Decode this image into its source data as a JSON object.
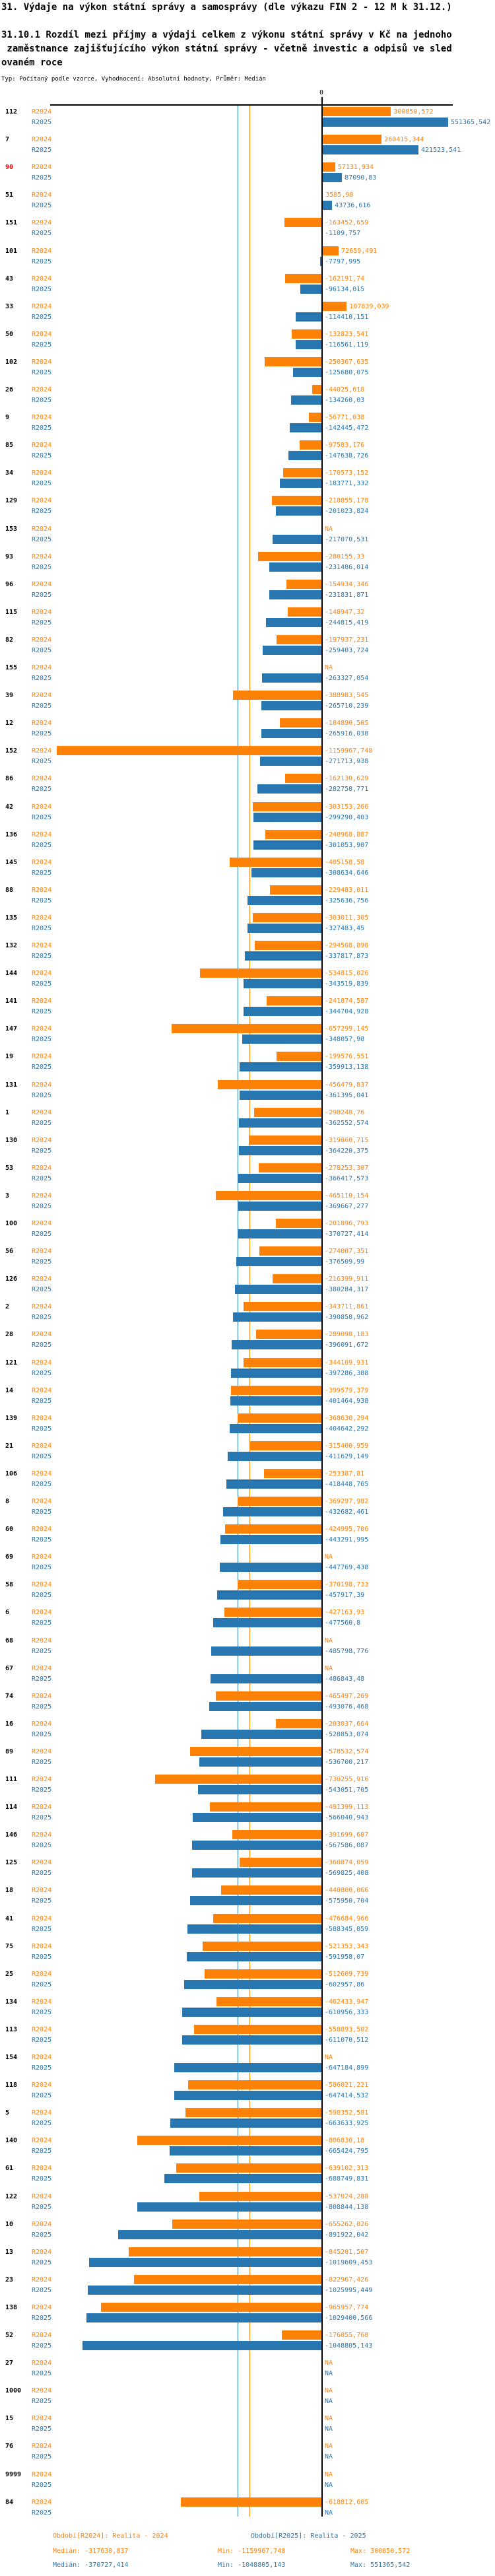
{
  "header": {
    "title": "31. Výdaje na výkon státní správy a samosprávy (dle výkazu FIN 2 - 12 M k 31.12.)",
    "subtitle_lines": [
      "31.10.1 Rozdíl mezi příjmy a výdaji celkem z výkonu státní správy v Kč na jednoho",
      " zaměstnance zajišťujícího výkon státní správy - včetně investic a odpisů ve sled",
      "ovaném roce"
    ],
    "type_note": "Typ: Počítaný podle vzorce, Vyhodnocení: Absolutní hodnoty, Průměr: Medián"
  },
  "chart_data": {
    "type": "bar",
    "orientation": "horizontal",
    "series_names": [
      "R2024",
      "R2025"
    ],
    "colors": {
      "r2024": "#ff8208",
      "r2025": "#2877b0",
      "highlight_id": "#ff0000",
      "axis": "#000000"
    },
    "axis": {
      "zero_label": "0"
    },
    "na_label": "NA",
    "rows": [
      {
        "id": "112",
        "r2024": "300850,572",
        "r2025": "551365,542"
      },
      {
        "id": "7",
        "r2024": "260415,344",
        "r2025": "421523,541"
      },
      {
        "id": "90",
        "highlight": true,
        "r2024": "57131,934",
        "r2025": "87090,83"
      },
      {
        "id": "51",
        "r2024": "3585,98",
        "r2025": "43736,616"
      },
      {
        "id": "151",
        "r2024": "-163452,659",
        "r2025": "-1109,757"
      },
      {
        "id": "101",
        "r2024": "72659,491",
        "r2025": "-7797,995"
      },
      {
        "id": "43",
        "r2024": "-162191,74",
        "r2025": "-96134,015"
      },
      {
        "id": "33",
        "r2024": "107839,039",
        "r2025": "-114410,151"
      },
      {
        "id": "50",
        "r2024": "-132823,541",
        "r2025": "-116561,119"
      },
      {
        "id": "102",
        "r2024": "-250367,635",
        "r2025": "-125680,075"
      },
      {
        "id": "26",
        "r2024": "-44025,618",
        "r2025": "-134260,03"
      },
      {
        "id": "9",
        "r2024": "-56771,038",
        "r2025": "-142445,472"
      },
      {
        "id": "85",
        "r2024": "-97583,176",
        "r2025": "-147638,726"
      },
      {
        "id": "34",
        "r2024": "-170573,152",
        "r2025": "-183771,332"
      },
      {
        "id": "129",
        "r2024": "-218855,178",
        "r2025": "-201023,824"
      },
      {
        "id": "153",
        "r2024": "NA",
        "r2025": "-217070,531"
      },
      {
        "id": "93",
        "r2024": "-280155,33",
        "r2025": "-231486,014"
      },
      {
        "id": "96",
        "r2024": "-154934,346",
        "r2025": "-231831,871"
      },
      {
        "id": "115",
        "r2024": "-148947,32",
        "r2025": "-244815,419"
      },
      {
        "id": "82",
        "r2024": "-197937,231",
        "r2025": "-259403,724"
      },
      {
        "id": "155",
        "r2024": "NA",
        "r2025": "-263327,054"
      },
      {
        "id": "39",
        "r2024": "-388983,545",
        "r2025": "-265710,239"
      },
      {
        "id": "12",
        "r2024": "-184890,505",
        "r2025": "-265916,038"
      },
      {
        "id": "152",
        "r2024": "-1159967,748",
        "r2025": "-271713,938"
      },
      {
        "id": "86",
        "r2024": "-162130,629",
        "r2025": "-282758,771"
      },
      {
        "id": "42",
        "r2024": "-303153,266",
        "r2025": "-299290,403"
      },
      {
        "id": "136",
        "r2024": "-248968,887",
        "r2025": "-301053,907"
      },
      {
        "id": "145",
        "r2024": "-405158,58",
        "r2025": "-308634,646"
      },
      {
        "id": "88",
        "r2024": "-229483,011",
        "r2025": "-325636,756"
      },
      {
        "id": "135",
        "r2024": "-303011,305",
        "r2025": "-327483,45"
      },
      {
        "id": "132",
        "r2024": "-294508,898",
        "r2025": "-337817,873"
      },
      {
        "id": "144",
        "r2024": "-534815,026",
        "r2025": "-343519,839"
      },
      {
        "id": "141",
        "r2024": "-241874,587",
        "r2025": "-344704,928"
      },
      {
        "id": "147",
        "r2024": "-657299,145",
        "r2025": "-348057,98"
      },
      {
        "id": "19",
        "r2024": "-199576,551",
        "r2025": "-359913,138"
      },
      {
        "id": "131",
        "r2024": "-456479,837",
        "r2025": "-361395,041"
      },
      {
        "id": "1",
        "r2024": "-298248,76",
        "r2025": "-362552,574"
      },
      {
        "id": "130",
        "r2024": "-319860,715",
        "r2025": "-364220,375"
      },
      {
        "id": "53",
        "r2024": "-278253,307",
        "r2025": "-366417,573"
      },
      {
        "id": "3",
        "r2024": "-465110,154",
        "r2025": "-369667,277"
      },
      {
        "id": "100",
        "r2024": "-201896,793",
        "r2025": "-370727,414"
      },
      {
        "id": "56",
        "r2024": "-274007,351",
        "r2025": "-376509,99"
      },
      {
        "id": "126",
        "r2024": "-216399,911",
        "r2025": "-380284,317"
      },
      {
        "id": "2",
        "r2024": "-343711,861",
        "r2025": "-390858,962"
      },
      {
        "id": "28",
        "r2024": "-289098,183",
        "r2025": "-396091,672"
      },
      {
        "id": "121",
        "r2024": "-344109,931",
        "r2025": "-397286,388"
      },
      {
        "id": "14",
        "r2024": "-399579,379",
        "r2025": "-401464,938"
      },
      {
        "id": "139",
        "r2024": "-368630,294",
        "r2025": "-404642,292"
      },
      {
        "id": "21",
        "r2024": "-315400,959",
        "r2025": "-411629,149"
      },
      {
        "id": "106",
        "r2024": "-253387,81",
        "r2025": "-418448,765"
      },
      {
        "id": "8",
        "r2024": "-369297,982",
        "r2025": "-432682,461"
      },
      {
        "id": "60",
        "r2024": "-424995,706",
        "r2025": "-443291,995"
      },
      {
        "id": "69",
        "r2024": "NA",
        "r2025": "-447769,438"
      },
      {
        "id": "58",
        "r2024": "-370198,733",
        "r2025": "-457917,39"
      },
      {
        "id": "6",
        "r2024": "-427163,93",
        "r2025": "-477560,8"
      },
      {
        "id": "68",
        "r2024": "NA",
        "r2025": "-485798,776"
      },
      {
        "id": "67",
        "r2024": "NA",
        "r2025": "-486843,48"
      },
      {
        "id": "74",
        "r2024": "-465497,269",
        "r2025": "-493076,468"
      },
      {
        "id": "16",
        "r2024": "-203037,664",
        "r2025": "-528853,074"
      },
      {
        "id": "89",
        "r2024": "-578532,574",
        "r2025": "-536700,217"
      },
      {
        "id": "111",
        "r2024": "-730255,916",
        "r2025": "-543051,705"
      },
      {
        "id": "114",
        "r2024": "-491399,113",
        "r2025": "-566040,943"
      },
      {
        "id": "146",
        "r2024": "-391699,687",
        "r2025": "-567586,087"
      },
      {
        "id": "125",
        "r2024": "-360874,059",
        "r2025": "-569825,408"
      },
      {
        "id": "18",
        "r2024": "-440800,066",
        "r2025": "-575950,704"
      },
      {
        "id": "41",
        "r2024": "-476684,966",
        "r2025": "-588345,059"
      },
      {
        "id": "75",
        "r2024": "-521353,343",
        "r2025": "-591958,07"
      },
      {
        "id": "25",
        "r2024": "-512609,739",
        "r2025": "-602957,86"
      },
      {
        "id": "134",
        "r2024": "-462433,947",
        "r2025": "-610956,333"
      },
      {
        "id": "113",
        "r2024": "-558893,502",
        "r2025": "-611070,512"
      },
      {
        "id": "154",
        "r2024": "NA",
        "r2025": "-647184,899"
      },
      {
        "id": "118",
        "r2024": "-586021,221",
        "r2025": "-647414,532"
      },
      {
        "id": "5",
        "r2024": "-598352,581",
        "r2025": "-663633,925"
      },
      {
        "id": "140",
        "r2024": "-806830,18",
        "r2025": "-665424,795"
      },
      {
        "id": "61",
        "r2024": "-639102,313",
        "r2025": "-688749,831"
      },
      {
        "id": "122",
        "r2024": "-537024,288",
        "r2025": "-808844,138"
      },
      {
        "id": "10",
        "r2024": "-655262,026",
        "r2025": "-891922,042"
      },
      {
        "id": "13",
        "r2024": "-845201,507",
        "r2025": "-1019609,453"
      },
      {
        "id": "23",
        "r2024": "-822967,426",
        "r2025": "-1025995,449"
      },
      {
        "id": "138",
        "r2024": "-965957,774",
        "r2025": "-1029400,566"
      },
      {
        "id": "52",
        "r2024": "-176055,768",
        "r2025": "-1048805,143"
      },
      {
        "id": "27",
        "r2024": "NA",
        "r2025": "NA"
      },
      {
        "id": "1000",
        "r2024": "NA",
        "r2025": "NA"
      },
      {
        "id": "15",
        "r2024": "NA",
        "r2025": "NA"
      },
      {
        "id": "76",
        "r2024": "NA",
        "r2025": "NA"
      },
      {
        "id": "9999",
        "r2024": "NA",
        "r2025": "NA"
      },
      {
        "id": "84",
        "r2024": "-618812,605",
        "r2025": "NA"
      }
    ]
  },
  "footer": {
    "r2024": {
      "legend": "Období[R2024]: Realita - 2024",
      "median": "Medián: -317630,837",
      "min": "Min: -1159967,748",
      "max": "Max: 300850,572"
    },
    "r2025": {
      "legend": "Období[R2025]: Realita - 2025",
      "median": "Medián: -370727,414",
      "min": "Min: -1048805,143",
      "max": "Max: 551365,542"
    }
  }
}
